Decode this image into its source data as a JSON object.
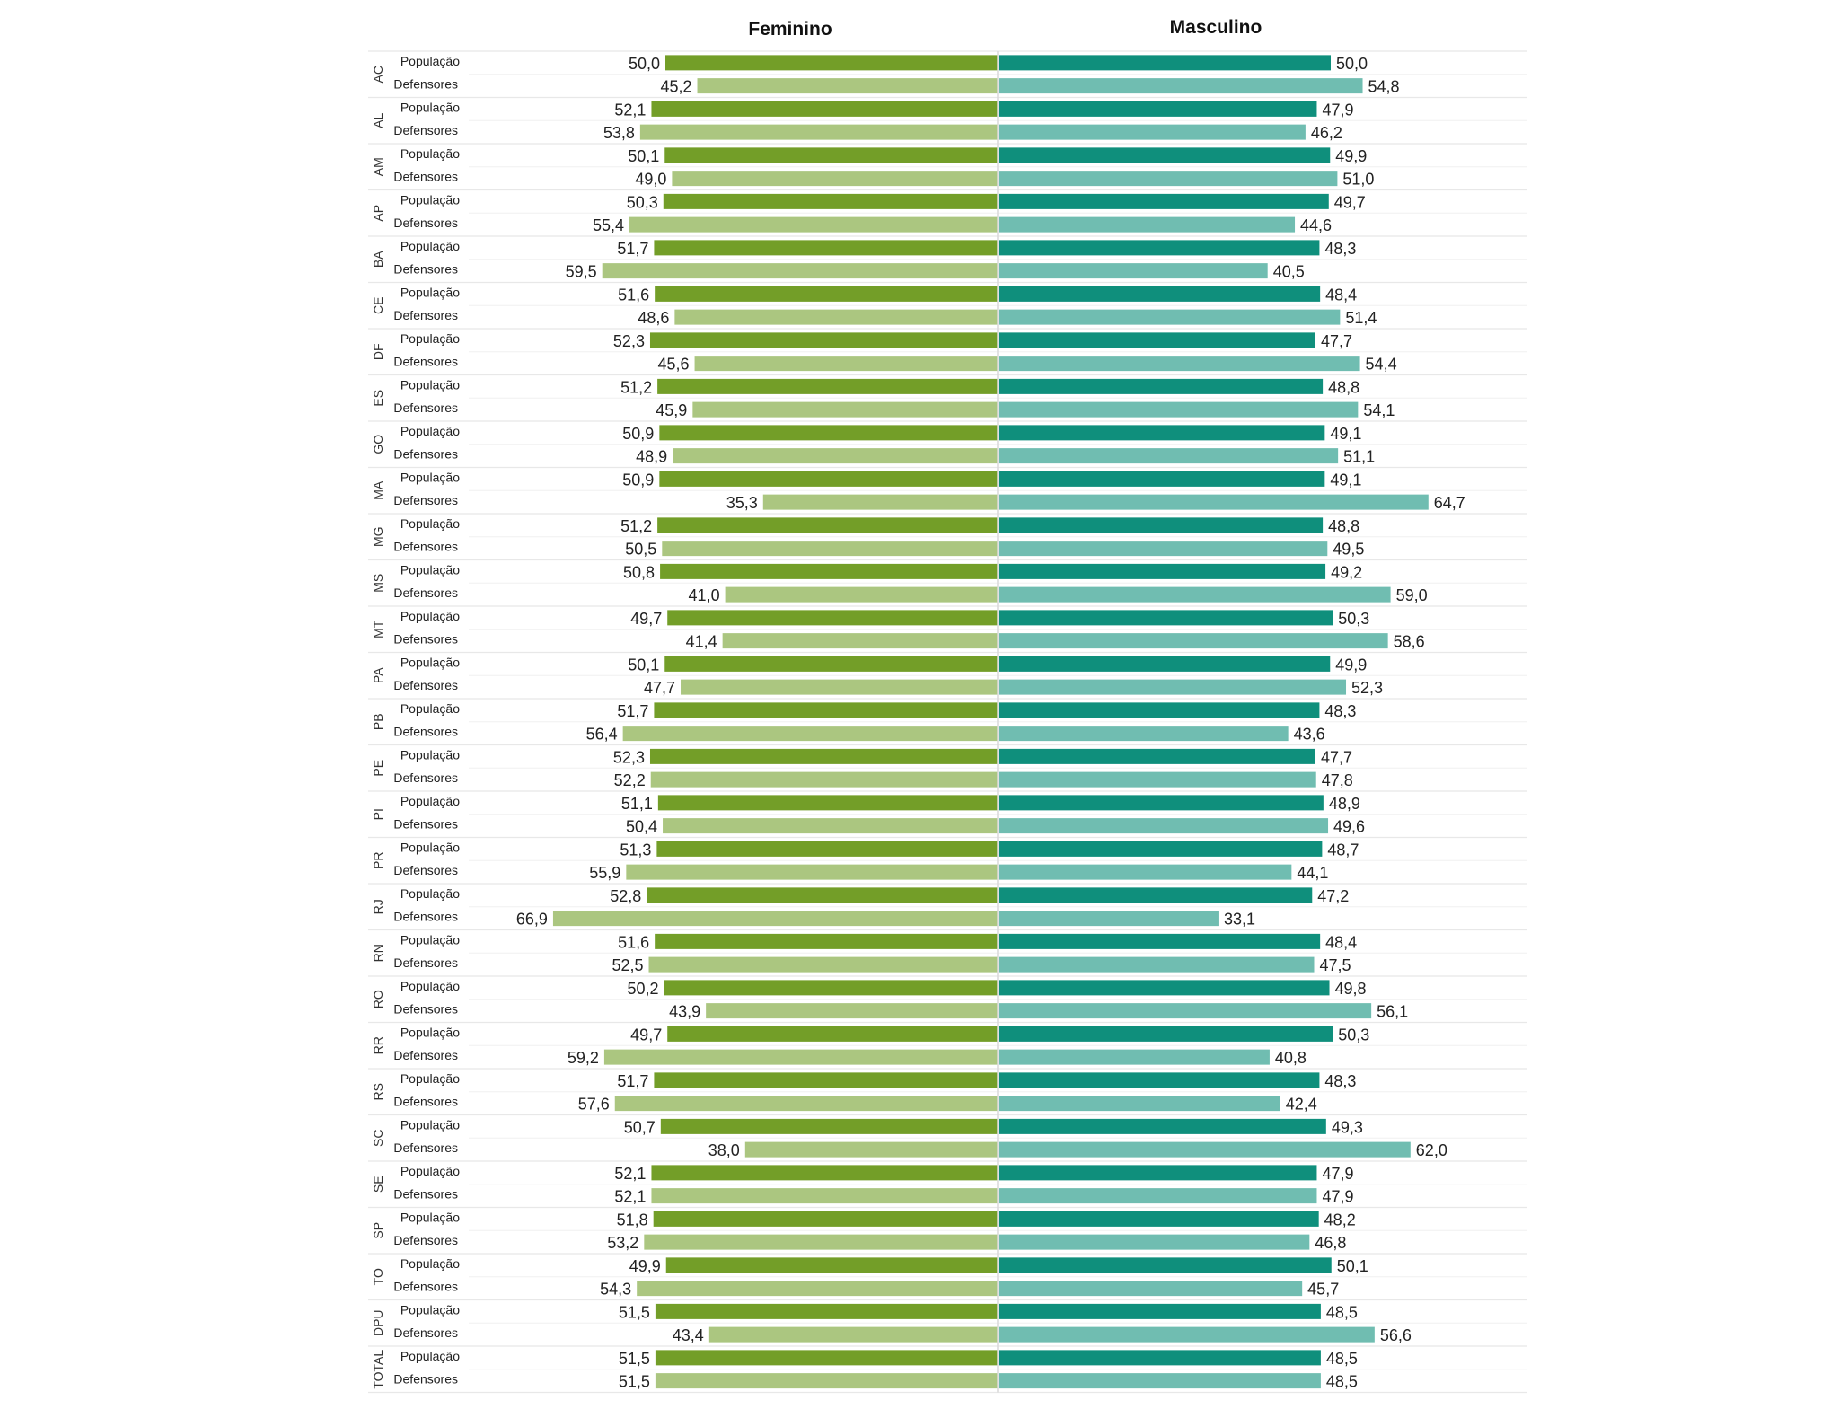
{
  "chart_data": {
    "type": "bar",
    "orientation": "horizontal-diverging",
    "title": "",
    "left_header": "Feminino",
    "right_header": "Masculino",
    "row_labels": [
      "População",
      "Defensores"
    ],
    "colors": {
      "female_populacao": "#739e28",
      "female_defensores": "#abc680",
      "male_populacao": "#0f8f7c",
      "male_defensores": "#70bdb1",
      "gridline": "#e8e8e8",
      "divider": "#d9d9d9"
    },
    "xlim": [
      0,
      70
    ],
    "decimal_separator": ",",
    "groups": [
      {
        "label": "AC",
        "populacao": {
          "feminino": 50.0,
          "masculino": 50.0
        },
        "defensores": {
          "feminino": 45.2,
          "masculino": 54.8
        }
      },
      {
        "label": "AL",
        "populacao": {
          "feminino": 52.1,
          "masculino": 47.9
        },
        "defensores": {
          "feminino": 53.8,
          "masculino": 46.2
        }
      },
      {
        "label": "AM",
        "populacao": {
          "feminino": 50.1,
          "masculino": 49.9
        },
        "defensores": {
          "feminino": 49.0,
          "masculino": 51.0
        }
      },
      {
        "label": "AP",
        "populacao": {
          "feminino": 50.3,
          "masculino": 49.7
        },
        "defensores": {
          "feminino": 55.4,
          "masculino": 44.6
        }
      },
      {
        "label": "BA",
        "populacao": {
          "feminino": 51.7,
          "masculino": 48.3
        },
        "defensores": {
          "feminino": 59.5,
          "masculino": 40.5
        }
      },
      {
        "label": "CE",
        "populacao": {
          "feminino": 51.6,
          "masculino": 48.4
        },
        "defensores": {
          "feminino": 48.6,
          "masculino": 51.4
        }
      },
      {
        "label": "DF",
        "populacao": {
          "feminino": 52.3,
          "masculino": 47.7
        },
        "defensores": {
          "feminino": 45.6,
          "masculino": 54.4
        }
      },
      {
        "label": "ES",
        "populacao": {
          "feminino": 51.2,
          "masculino": 48.8
        },
        "defensores": {
          "feminino": 45.9,
          "masculino": 54.1
        }
      },
      {
        "label": "GO",
        "populacao": {
          "feminino": 50.9,
          "masculino": 49.1
        },
        "defensores": {
          "feminino": 48.9,
          "masculino": 51.1
        }
      },
      {
        "label": "MA",
        "populacao": {
          "feminino": 50.9,
          "masculino": 49.1
        },
        "defensores": {
          "feminino": 35.3,
          "masculino": 64.7
        }
      },
      {
        "label": "MG",
        "populacao": {
          "feminino": 51.2,
          "masculino": 48.8
        },
        "defensores": {
          "feminino": 50.5,
          "masculino": 49.5
        }
      },
      {
        "label": "MS",
        "populacao": {
          "feminino": 50.8,
          "masculino": 49.2
        },
        "defensores": {
          "feminino": 41.0,
          "masculino": 59.0
        }
      },
      {
        "label": "MT",
        "populacao": {
          "feminino": 49.7,
          "masculino": 50.3
        },
        "defensores": {
          "feminino": 41.4,
          "masculino": 58.6
        }
      },
      {
        "label": "PA",
        "populacao": {
          "feminino": 50.1,
          "masculino": 49.9
        },
        "defensores": {
          "feminino": 47.7,
          "masculino": 52.3
        }
      },
      {
        "label": "PB",
        "populacao": {
          "feminino": 51.7,
          "masculino": 48.3
        },
        "defensores": {
          "feminino": 56.4,
          "masculino": 43.6
        }
      },
      {
        "label": "PE",
        "populacao": {
          "feminino": 52.3,
          "masculino": 47.7
        },
        "defensores": {
          "feminino": 52.2,
          "masculino": 47.8
        }
      },
      {
        "label": "PI",
        "populacao": {
          "feminino": 51.1,
          "masculino": 48.9
        },
        "defensores": {
          "feminino": 50.4,
          "masculino": 49.6
        }
      },
      {
        "label": "PR",
        "populacao": {
          "feminino": 51.3,
          "masculino": 48.7
        },
        "defensores": {
          "feminino": 55.9,
          "masculino": 44.1
        }
      },
      {
        "label": "RJ",
        "populacao": {
          "feminino": 52.8,
          "masculino": 47.2
        },
        "defensores": {
          "feminino": 66.9,
          "masculino": 33.1
        }
      },
      {
        "label": "RN",
        "populacao": {
          "feminino": 51.6,
          "masculino": 48.4
        },
        "defensores": {
          "feminino": 52.5,
          "masculino": 47.5
        }
      },
      {
        "label": "RO",
        "populacao": {
          "feminino": 50.2,
          "masculino": 49.8
        },
        "defensores": {
          "feminino": 43.9,
          "masculino": 56.1
        }
      },
      {
        "label": "RR",
        "populacao": {
          "feminino": 49.7,
          "masculino": 50.3
        },
        "defensores": {
          "feminino": 59.2,
          "masculino": 40.8
        }
      },
      {
        "label": "RS",
        "populacao": {
          "feminino": 51.7,
          "masculino": 48.3
        },
        "defensores": {
          "feminino": 57.6,
          "masculino": 42.4
        }
      },
      {
        "label": "SC",
        "populacao": {
          "feminino": 50.7,
          "masculino": 49.3
        },
        "defensores": {
          "feminino": 38.0,
          "masculino": 62.0
        }
      },
      {
        "label": "SE",
        "populacao": {
          "feminino": 52.1,
          "masculino": 47.9
        },
        "defensores": {
          "feminino": 52.1,
          "masculino": 47.9
        }
      },
      {
        "label": "SP",
        "populacao": {
          "feminino": 51.8,
          "masculino": 48.2
        },
        "defensores": {
          "feminino": 53.2,
          "masculino": 46.8
        }
      },
      {
        "label": "TO",
        "populacao": {
          "feminino": 49.9,
          "masculino": 50.1
        },
        "defensores": {
          "feminino": 54.3,
          "masculino": 45.7
        }
      },
      {
        "label": "DPU",
        "populacao": {
          "feminino": 51.5,
          "masculino": 48.5
        },
        "defensores": {
          "feminino": 43.4,
          "masculino": 56.6
        }
      },
      {
        "label": "TOTAL",
        "populacao": {
          "feminino": 51.5,
          "masculino": 48.5
        },
        "defensores": {
          "feminino": 51.5,
          "masculino": 48.5
        }
      }
    ]
  }
}
